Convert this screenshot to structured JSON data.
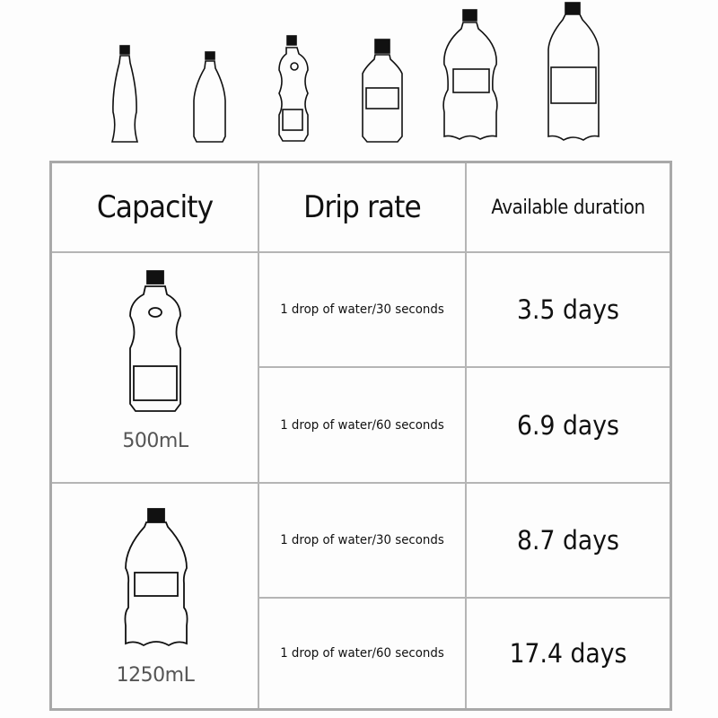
{
  "header": {
    "capacity": "Capacity",
    "drip_rate": "Drip rate",
    "duration": "Available duration"
  },
  "groups": [
    {
      "capacity": "500mL",
      "rows": [
        {
          "rate": "1 drop of water/30 seconds",
          "duration": "3.5 days"
        },
        {
          "rate": "1 drop of water/60 seconds",
          "duration": "6.9 days"
        }
      ]
    },
    {
      "capacity": "1250mL",
      "rows": [
        {
          "rate": "1 drop of water/30 seconds",
          "duration": "8.7 days"
        },
        {
          "rate": "1 drop of water/60 seconds",
          "duration": "17.4 days"
        }
      ]
    }
  ],
  "colors": {
    "border": "#a9a9a9",
    "text": "#111111",
    "capacity_text": "#555555"
  }
}
